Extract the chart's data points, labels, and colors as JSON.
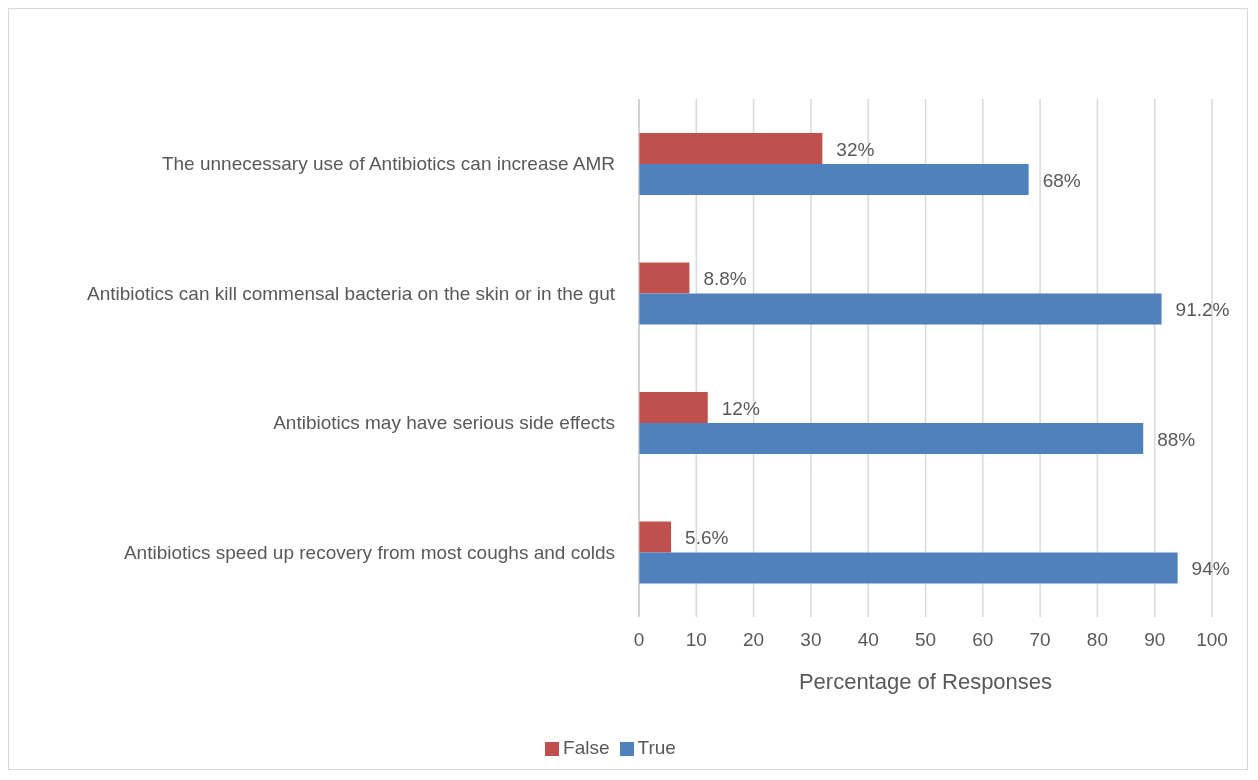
{
  "chart_data": {
    "type": "bar",
    "orientation": "horizontal",
    "categories": [
      "The unnecessary use of Antibiotics can increase AMR",
      "Antibiotics can kill commensal bacteria on the skin or in the gut",
      "Antibiotics may have serious side effects",
      "Antibiotics speed up recovery from most coughs and colds"
    ],
    "series": [
      {
        "name": "False",
        "color": "#c0504d",
        "values": [
          32,
          8.8,
          12,
          5.6
        ],
        "value_labels": [
          "32%",
          "8.8%",
          "12%",
          "5.6%"
        ]
      },
      {
        "name": "True",
        "color": "#4f81bd",
        "values": [
          68,
          91.2,
          88,
          94
        ],
        "value_labels": [
          "68%",
          "91.2%",
          "88%",
          "94%"
        ]
      }
    ],
    "xlim": [
      0,
      100
    ],
    "xticks": [
      0,
      10,
      20,
      30,
      40,
      50,
      60,
      70,
      80,
      90,
      100
    ],
    "xlabel": "Percentage of Responses",
    "grid": "x",
    "legend": "bottom"
  }
}
